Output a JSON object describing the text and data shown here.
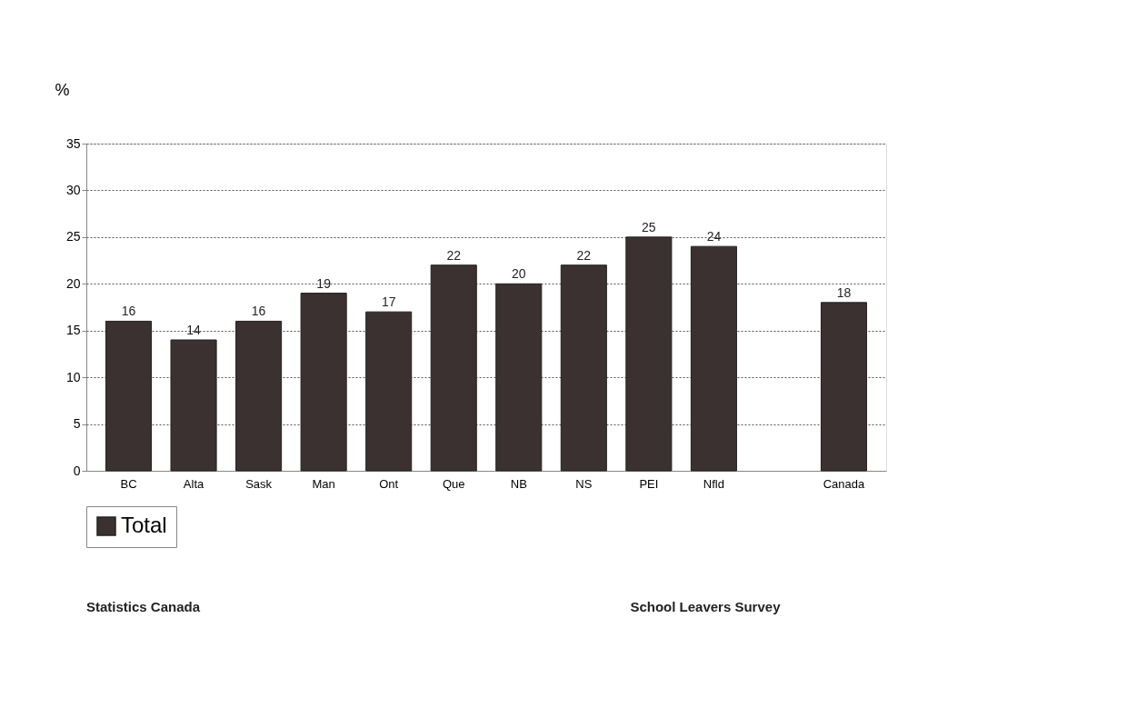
{
  "chart_data": {
    "type": "bar",
    "ylabel": "%",
    "categories": [
      "BC",
      "Alta",
      "Sask",
      "Man",
      "Ont",
      "Que",
      "NB",
      "NS",
      "PEI",
      "Nfld",
      null,
      "Canada"
    ],
    "series": [
      {
        "name": "Total",
        "color": "#3b3131",
        "values": [
          16,
          14,
          16,
          19,
          17,
          22,
          20,
          22,
          25,
          24,
          null,
          18
        ]
      }
    ],
    "ylim": [
      0,
      35
    ],
    "yticks": [
      0,
      5,
      10,
      15,
      20,
      25,
      30,
      35
    ],
    "data_labels": true,
    "grid": "y",
    "legend": "bottom",
    "annotations": [
      "Statistics Canada",
      "School Leavers Survey"
    ]
  }
}
